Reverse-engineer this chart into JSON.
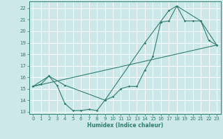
{
  "xlabel": "Humidex (Indice chaleur)",
  "bg_color": "#cce8e8",
  "grid_color": "#ffffff",
  "line_color": "#2e7d6e",
  "xlim": [
    -0.5,
    23.5
  ],
  "ylim": [
    12.8,
    22.6
  ],
  "yticks": [
    13,
    14,
    15,
    16,
    17,
    18,
    19,
    20,
    21,
    22
  ],
  "xticks": [
    0,
    1,
    2,
    3,
    4,
    5,
    6,
    7,
    8,
    9,
    10,
    11,
    12,
    13,
    14,
    15,
    16,
    17,
    18,
    19,
    20,
    21,
    22,
    23
  ],
  "line1_x": [
    0,
    1,
    2,
    3,
    4,
    5,
    6,
    7,
    8,
    9,
    10,
    11,
    12,
    13,
    14,
    15,
    16,
    17,
    18,
    19,
    20,
    21,
    22,
    23
  ],
  "line1_y": [
    15.2,
    15.4,
    16.1,
    15.3,
    13.7,
    13.1,
    13.1,
    13.2,
    13.1,
    14.0,
    14.3,
    15.0,
    15.2,
    15.2,
    16.6,
    17.8,
    20.8,
    20.9,
    22.2,
    20.9,
    20.9,
    20.9,
    19.2,
    18.8
  ],
  "line2_x": [
    0,
    2,
    4,
    9,
    14,
    17,
    18,
    21,
    23
  ],
  "line2_y": [
    15.2,
    16.1,
    15.3,
    14.0,
    19.0,
    21.8,
    22.2,
    20.9,
    18.8
  ],
  "line3_x": [
    0,
    23
  ],
  "line3_y": [
    15.2,
    18.8
  ]
}
